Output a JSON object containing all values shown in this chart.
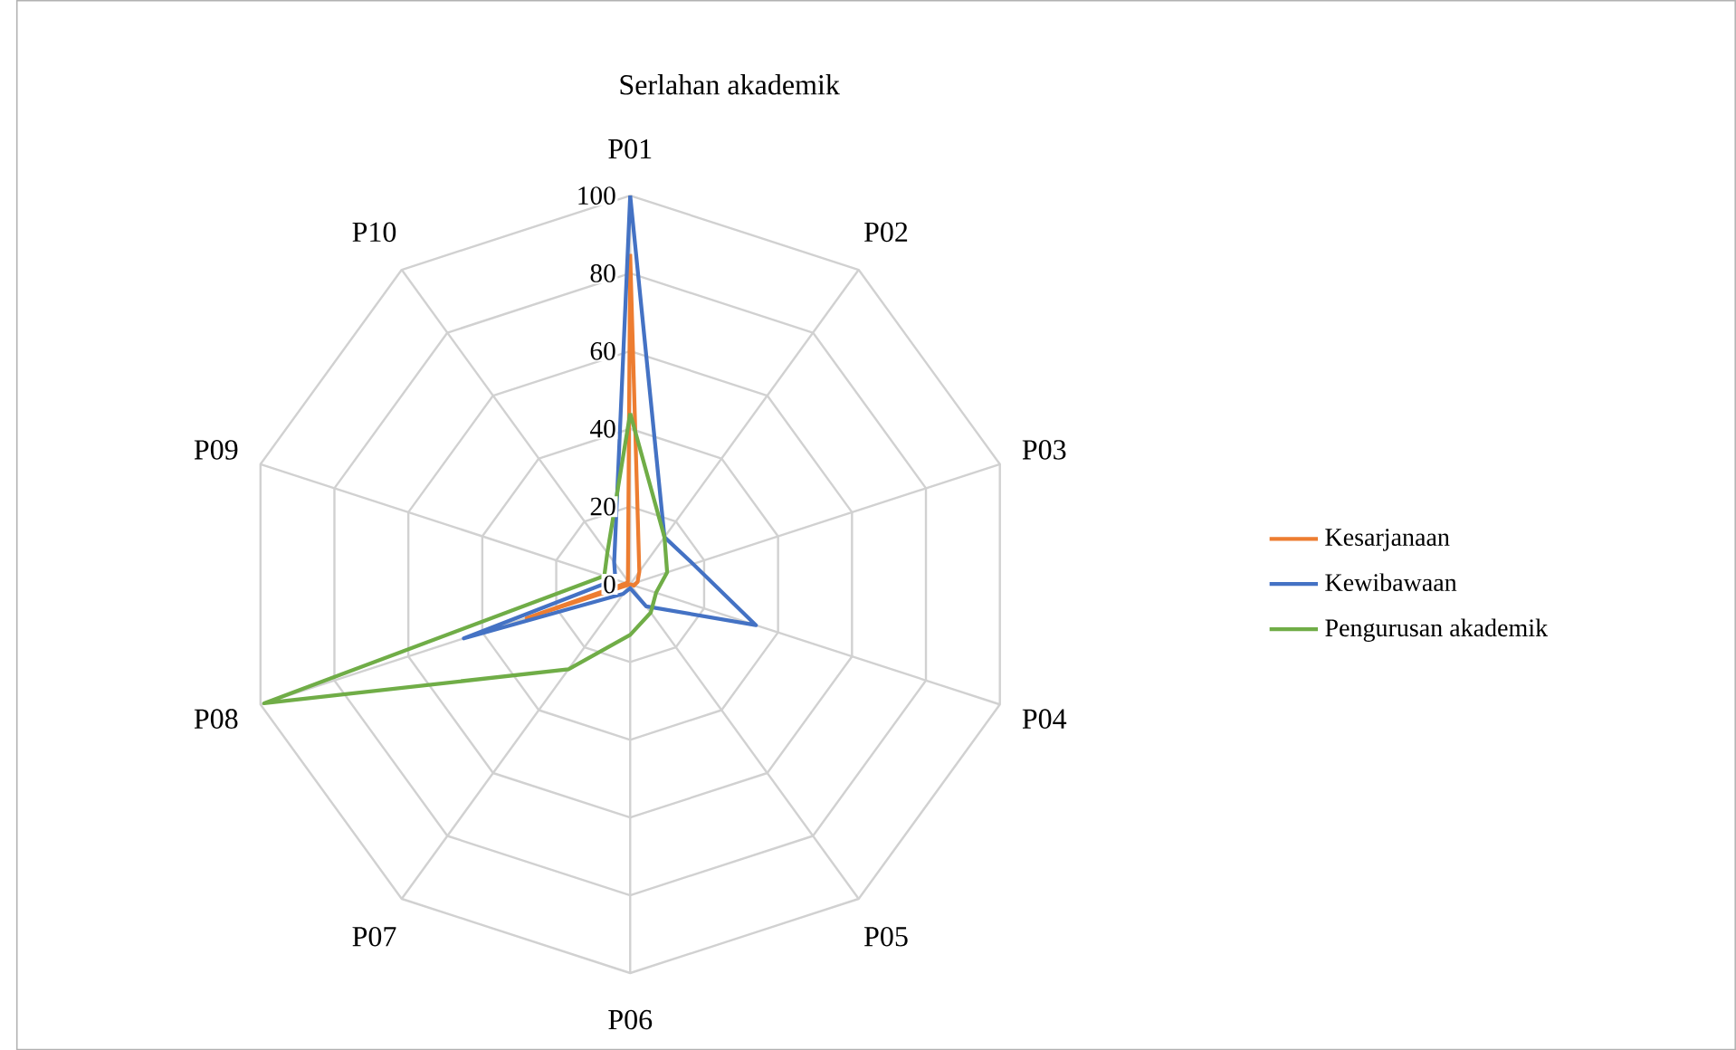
{
  "chart_data": {
    "type": "radar",
    "title": "Serlahan akademik",
    "categories": [
      "P01",
      "P02",
      "P03",
      "P04",
      "P05",
      "P06",
      "P07",
      "P08",
      "P09",
      "P10"
    ],
    "series": [
      {
        "name": "Kesarjanaan",
        "color": "#ed7d31",
        "values": [
          85,
          4,
          2,
          1,
          0,
          0,
          0,
          28,
          1,
          1
        ]
      },
      {
        "name": "Kewibawaan",
        "color": "#4472c4",
        "values": [
          100,
          15,
          17,
          34,
          7,
          1,
          3,
          45,
          4,
          7
        ]
      },
      {
        "name": "Pengurusan akademik",
        "color": "#70ad47",
        "values": [
          44,
          15,
          10,
          7,
          9,
          13,
          27,
          99,
          7,
          10
        ]
      }
    ],
    "ylim": [
      0,
      100
    ],
    "yticks": [
      0,
      20,
      40,
      60,
      80,
      100
    ],
    "grid": true,
    "legend": "right"
  }
}
